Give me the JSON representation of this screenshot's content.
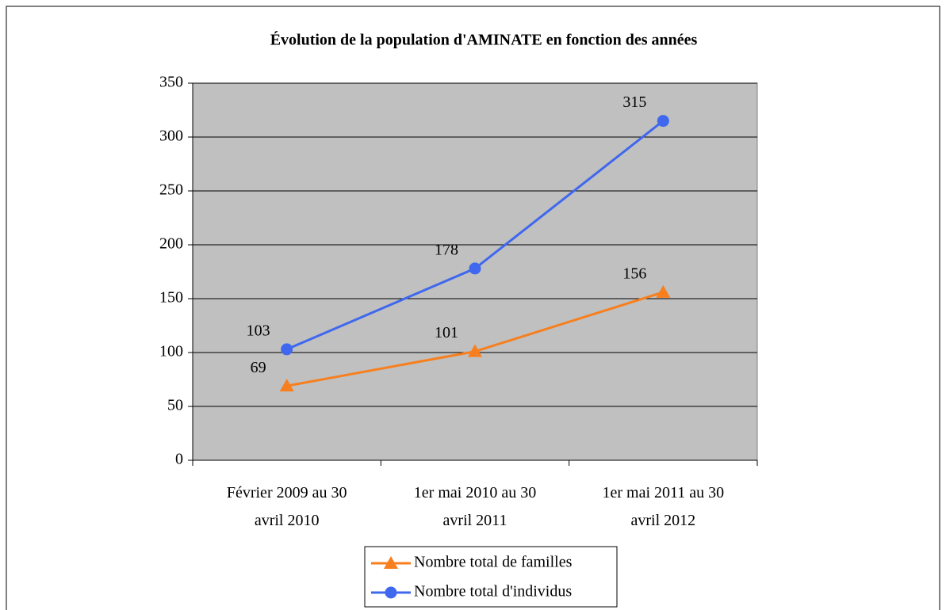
{
  "chart_data": {
    "type": "line",
    "title": "Évolution de la population d'AMINATE en fonction des années",
    "categories": [
      "Février 2009 au 30 avril 2010",
      "1er mai 2010 au 30 avril 2011",
      "1er mai 2011 au 30 avril 2012"
    ],
    "series": [
      {
        "name": "Nombre total de familles",
        "color": "#f77f1e",
        "marker": "triangle",
        "values": [
          69,
          101,
          156
        ]
      },
      {
        "name": "Nombre total d'individus",
        "color": "#3f68ee",
        "marker": "circle",
        "values": [
          103,
          178,
          315
        ]
      }
    ],
    "ylim": [
      0,
      350
    ],
    "yticks": [
      0,
      50,
      100,
      150,
      200,
      250,
      300,
      350
    ],
    "grid": true,
    "legend": "bottom"
  }
}
